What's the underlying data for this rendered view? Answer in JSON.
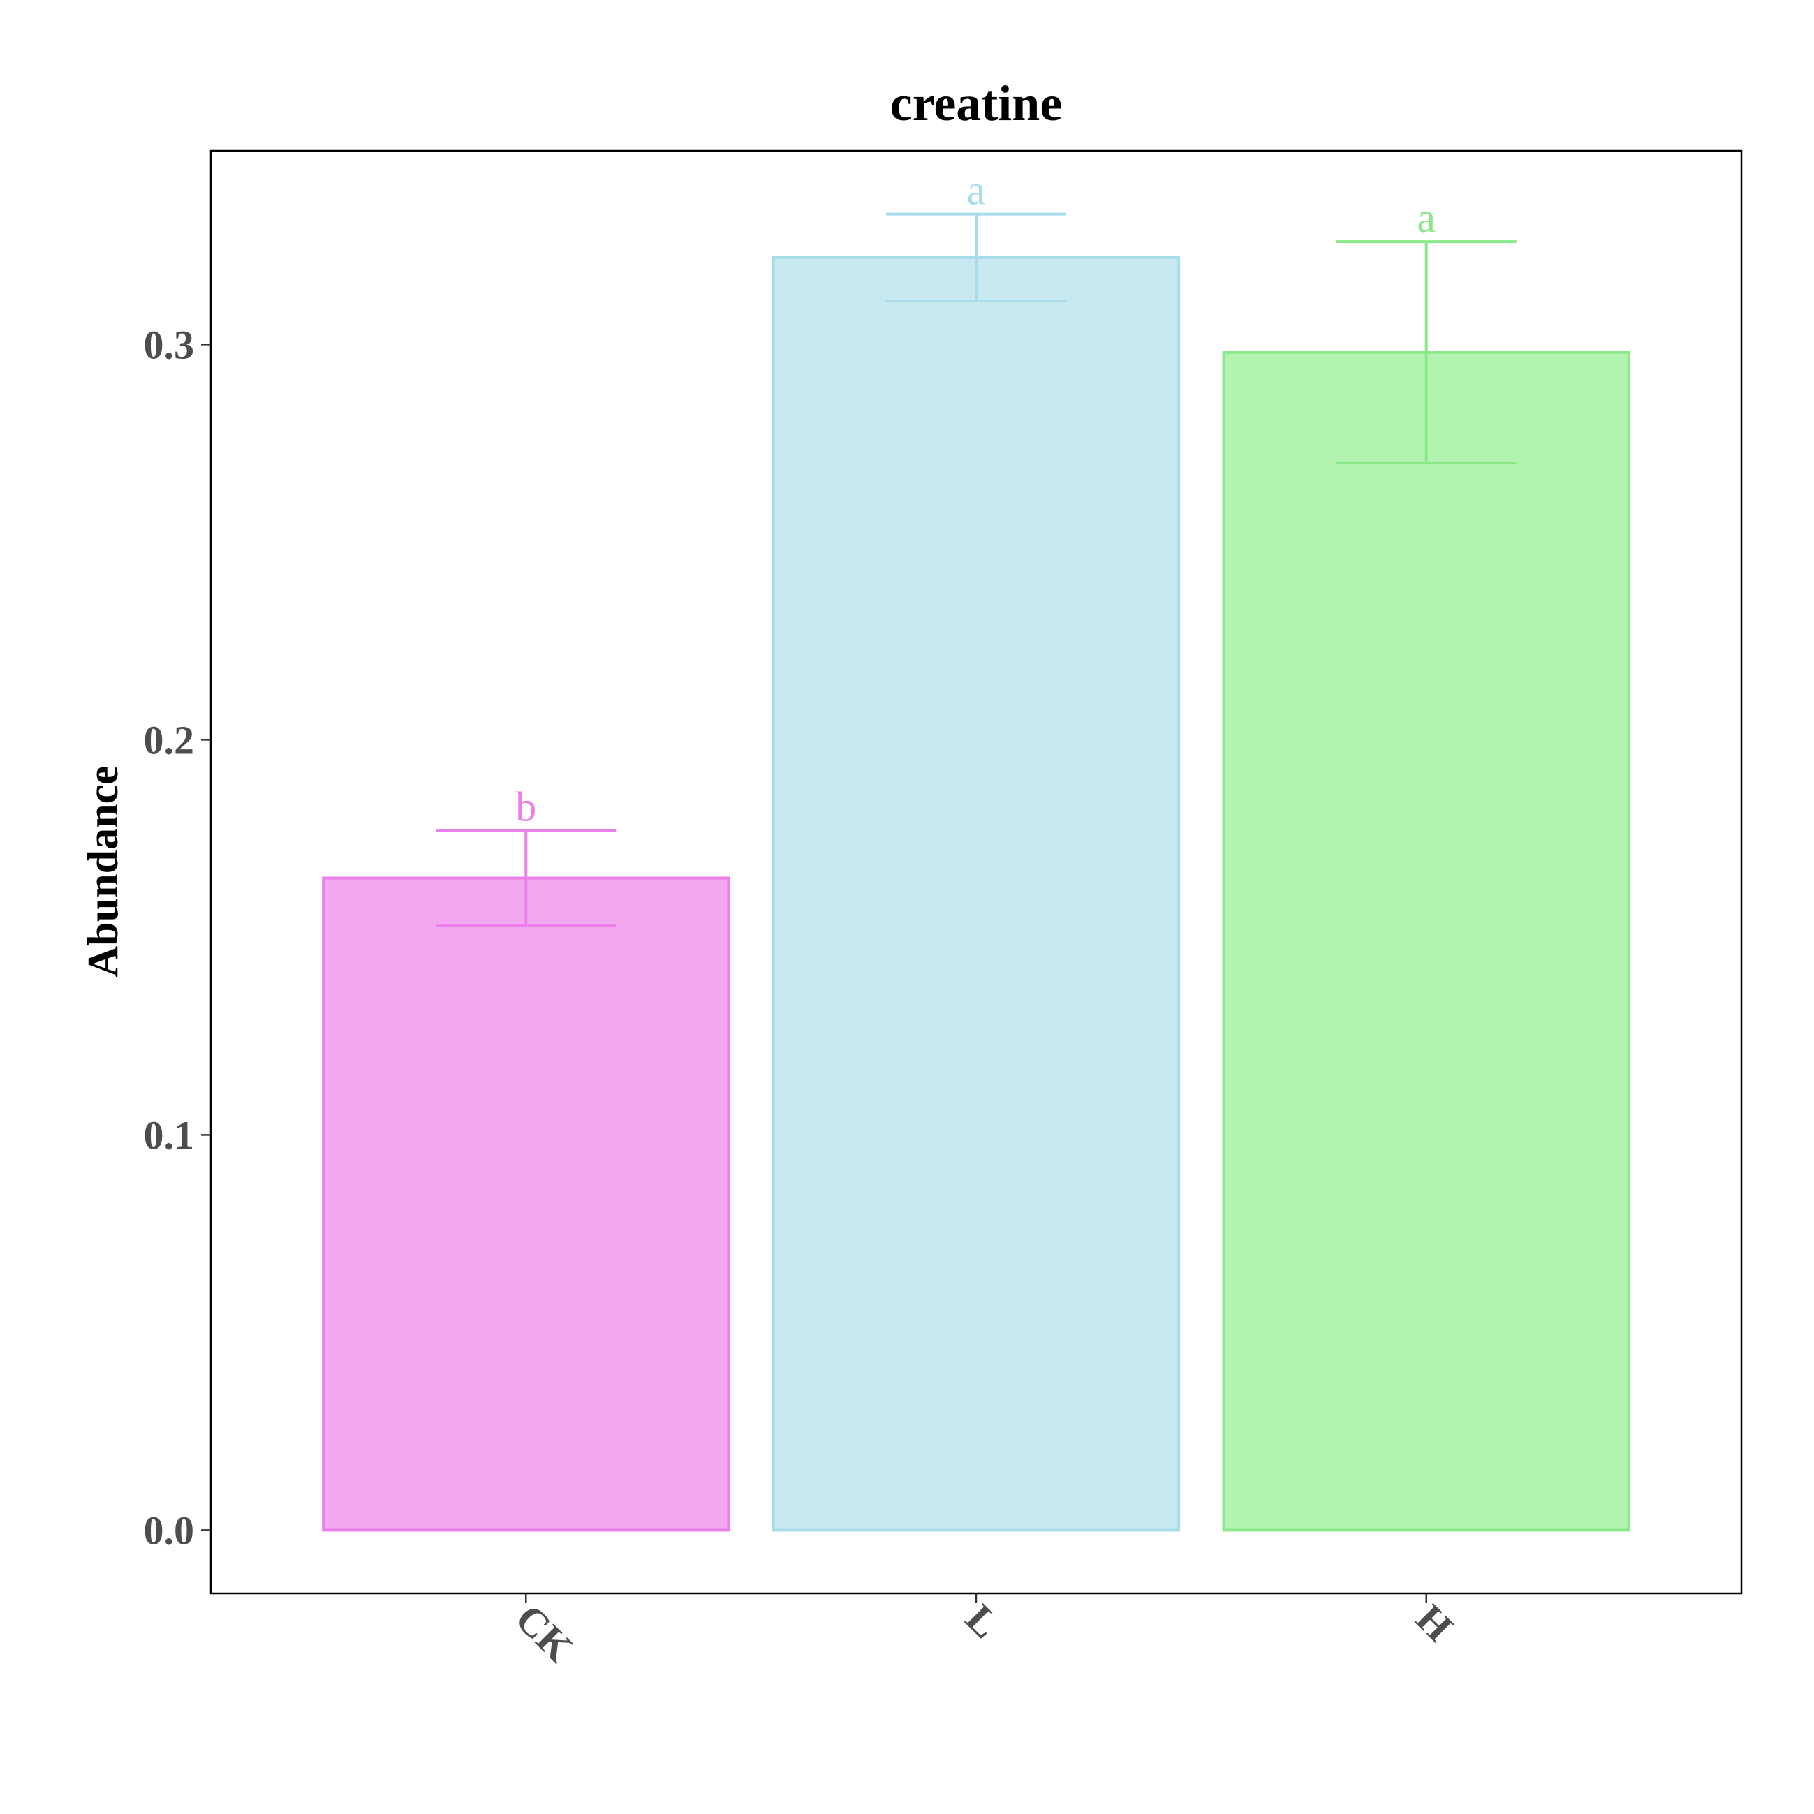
{
  "chart_data": {
    "type": "bar",
    "title": "creatine",
    "xlabel": "",
    "ylabel": "Abundance",
    "categories": [
      "CK",
      "L",
      "H"
    ],
    "values": [
      0.165,
      0.322,
      0.298
    ],
    "error_low": [
      0.153,
      0.311,
      0.27
    ],
    "error_high": [
      0.177,
      0.333,
      0.326
    ],
    "significance": [
      "b",
      "a",
      "a"
    ],
    "colors": {
      "fill": [
        "#f3a7f0",
        "#c9e9f1",
        "#b2f3af"
      ],
      "stroke": [
        "#ea80e8",
        "#a8dcea",
        "#8be889"
      ]
    },
    "ylim": [
      -0.016,
      0.349
    ],
    "yticks": [
      "0.0",
      "0.1",
      "0.2",
      "0.3"
    ],
    "grid": false,
    "legend": "none"
  }
}
